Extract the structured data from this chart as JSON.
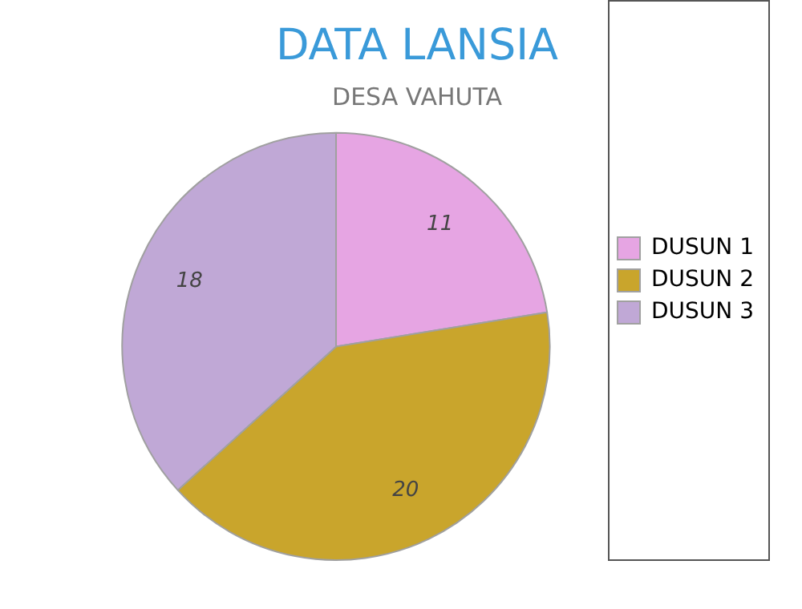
{
  "chart_data": {
    "type": "pie",
    "title": "DATA LANSIA",
    "subtitle": "DESA VAHUTA",
    "categories": [
      "DUSUN 1",
      "DUSUN 2",
      "DUSUN 3"
    ],
    "values": [
      11,
      20,
      18
    ],
    "colors": [
      "#e6a5e3",
      "#c9a52c",
      "#c0a8d6"
    ],
    "data_labels": true,
    "legend": "right"
  }
}
